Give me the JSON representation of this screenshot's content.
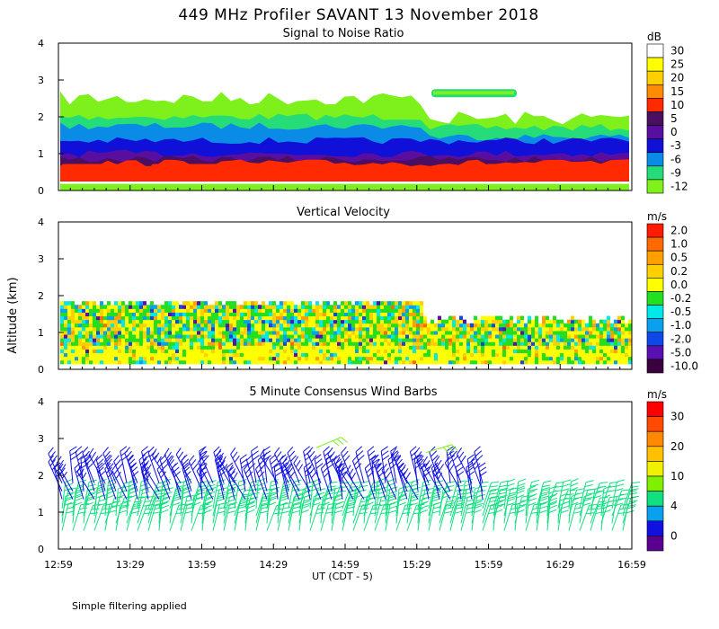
{
  "figure": {
    "title": "449 MHz Profiler SAVANT 13 November 2018",
    "ylabel": "Altitude (km)",
    "xlabel": "UT  (CDT - 5)",
    "footnote": "Simple filtering applied"
  },
  "chart_data": [
    {
      "type": "heatmap",
      "title": "Signal to Noise Ratio",
      "xlabel": "UT  (CDT - 5)",
      "ylabel": "Altitude (km)",
      "x_ticks": [
        "12:59",
        "13:29",
        "13:59",
        "14:29",
        "14:59",
        "15:29",
        "15:59",
        "16:29",
        "16:59"
      ],
      "x_range": [
        "12:59",
        "16:59"
      ],
      "ylim": [
        0,
        4
      ],
      "y_ticks": [
        0,
        1,
        2,
        3,
        4
      ],
      "colorbar": {
        "unit": "dB",
        "labels": [
          "30",
          "25",
          "20",
          "15",
          "10",
          "5",
          "0",
          "-3",
          "-6",
          "-9",
          "-12"
        ],
        "colors": [
          "#ffffff",
          "#ffff00",
          "#ffd000",
          "#ff8c00",
          "#ff2a00",
          "#4a0f60",
          "#5a0ea0",
          "#1010d8",
          "#0a8ce6",
          "#26dc78",
          "#7ef01c"
        ]
      },
      "layers_km": [
        {
          "band": "-12 to -9 dB",
          "top_km": 2.5,
          "color": "#7ef01c"
        },
        {
          "band": "-9 to -6 dB",
          "top_km": 2.0,
          "color": "#26dc78"
        },
        {
          "band": "-6 to -3 dB",
          "top_km": 1.75,
          "color": "#0a8ce6"
        },
        {
          "band": "-3 to 0 dB",
          "top_km": 1.35,
          "color": "#1010d8"
        },
        {
          "band": "0 to 5 dB",
          "top_km": 1.0,
          "color": "#5a0ea0"
        },
        {
          "band": "5 to 10 dB",
          "top_km": 0.85,
          "color": "#4a0f60"
        },
        {
          "band": "10 to 15 dB",
          "top_km": 0.75,
          "color": "#ff2a00"
        }
      ]
    },
    {
      "type": "heatmap",
      "title": "Vertical Velocity",
      "xlabel": "UT  (CDT - 5)",
      "ylabel": "Altitude (km)",
      "x_ticks": [
        "12:59",
        "13:29",
        "13:59",
        "14:29",
        "14:59",
        "15:29",
        "15:59",
        "16:29",
        "16:59"
      ],
      "x_range": [
        "12:59",
        "16:59"
      ],
      "ylim": [
        0,
        4
      ],
      "y_ticks": [
        0,
        1,
        2,
        3,
        4
      ],
      "colorbar": {
        "unit": "m/s",
        "labels": [
          "2.0",
          "1.0",
          "0.5",
          "0.2",
          "0.0",
          "-0.2",
          "-0.5",
          "-1.0",
          "-2.0",
          "-5.0",
          "-10.0"
        ],
        "colors": [
          "#ff1a00",
          "#ff6a00",
          "#ffa000",
          "#ffd000",
          "#ffff00",
          "#22e020",
          "#00e8e8",
          "#0aa0f0",
          "#1048e8",
          "#5a10b0",
          "#3a0040"
        ]
      },
      "dominant_values": [
        "-0.2",
        "0.0",
        "0.2"
      ]
    },
    {
      "type": "scatter",
      "title": "5 Minute Consensus Wind Barbs",
      "xlabel": "UT  (CDT - 5)",
      "ylabel": "Altitude (km)",
      "x_ticks": [
        "12:59",
        "13:29",
        "13:59",
        "14:29",
        "14:59",
        "15:29",
        "15:59",
        "16:29",
        "16:59"
      ],
      "x_range": [
        "12:59",
        "16:59"
      ],
      "ylim": [
        0,
        4
      ],
      "y_ticks": [
        0,
        1,
        2,
        3,
        4
      ],
      "colorbar": {
        "unit": "m/s",
        "labels": [
          "30",
          "20",
          "10",
          "4",
          "0"
        ],
        "colors": [
          "#ff0000",
          "#ff4a00",
          "#ff8a00",
          "#ffc000",
          "#f0f000",
          "#7ef000",
          "#10e080",
          "#0aa0f0",
          "#1010e0",
          "#5a0090"
        ]
      },
      "series": [
        {
          "layer": "upper (1.3-2.2 km)",
          "speed_m_s": 4,
          "color": "#1010e0"
        },
        {
          "layer": "lower (0.3-1.3 km)",
          "speed_m_s": 10,
          "color": "#10e080"
        }
      ]
    }
  ]
}
